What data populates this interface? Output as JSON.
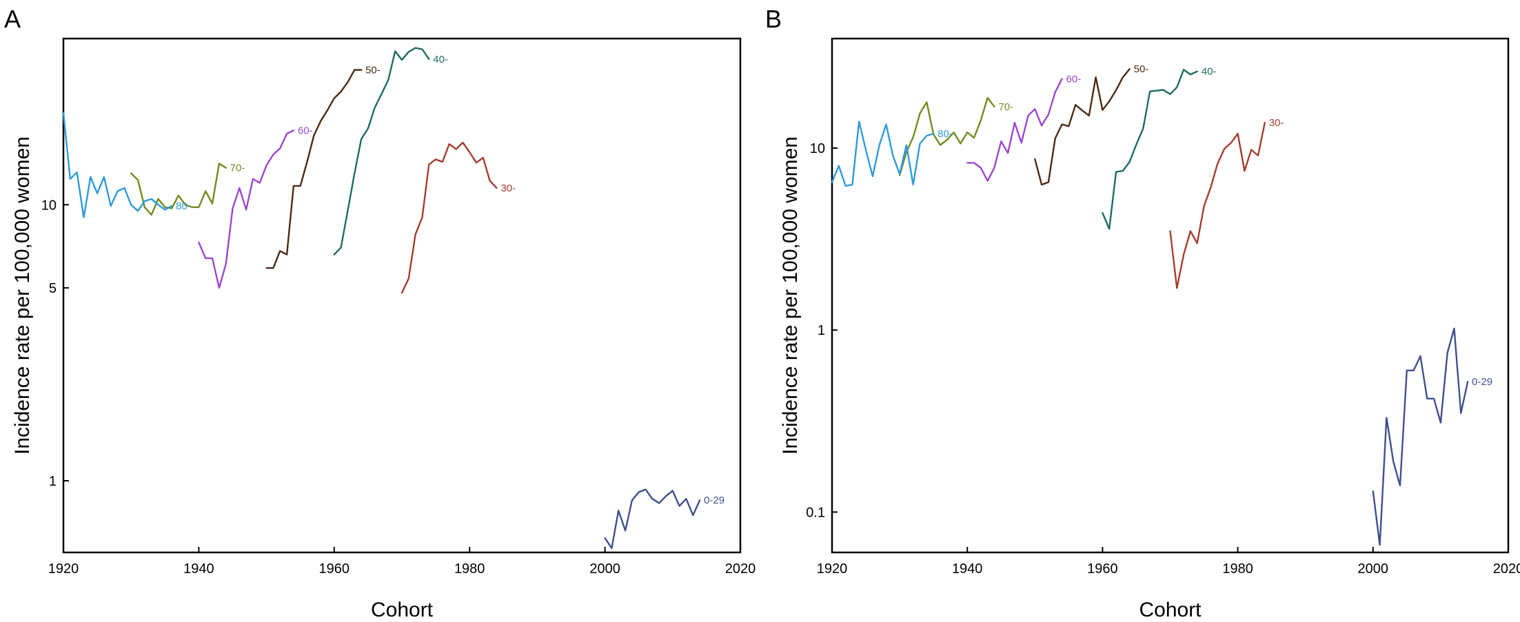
{
  "chart_data": [
    {
      "type": "line",
      "panel": "A",
      "xlabel": "Cohort",
      "ylabel": "Incidence rate per 100,000 women",
      "xlim": [
        1920,
        2020
      ],
      "ylim": [
        0.55,
        40
      ],
      "yscale": "log",
      "xticks": [
        1920,
        1940,
        1960,
        1980,
        2000,
        2020
      ],
      "yticks": [
        1,
        5,
        10
      ],
      "grid": false,
      "legend": "none",
      "series": [
        {
          "name": "0-29",
          "color": "#3f4f8c",
          "x": [
            2000,
            2001,
            2002,
            2003,
            2004,
            2005,
            2006,
            2007,
            2008,
            2009,
            2010,
            2011,
            2012,
            2013,
            2014
          ],
          "y": [
            0.62,
            0.57,
            0.78,
            0.66,
            0.85,
            0.91,
            0.93,
            0.86,
            0.83,
            0.88,
            0.92,
            0.81,
            0.86,
            0.75,
            0.85
          ]
        },
        {
          "name": "30-",
          "color": "#a33d2f",
          "x": [
            1970,
            1971,
            1972,
            1973,
            1974,
            1975,
            1976,
            1977,
            1978,
            1979,
            1980,
            1981,
            1982,
            1983,
            1984
          ],
          "y": [
            4.8,
            5.4,
            7.8,
            9.0,
            14.0,
            14.6,
            14.3,
            16.6,
            15.9,
            16.8,
            15.5,
            14.2,
            14.8,
            12.2,
            11.5
          ]
        },
        {
          "name": "40-",
          "color": "#1d6b60",
          "x": [
            1960,
            1961,
            1962,
            1963,
            1964,
            1965,
            1966,
            1967,
            1968,
            1969,
            1970,
            1971,
            1972,
            1973,
            1974
          ],
          "y": [
            6.6,
            7.0,
            9.5,
            13.0,
            17.3,
            18.9,
            22.5,
            25.2,
            28.4,
            36.0,
            33.5,
            35.8,
            37.0,
            36.6,
            33.7
          ]
        },
        {
          "name": "50-",
          "color": "#4b2a12",
          "x": [
            1950,
            1951,
            1952,
            1953,
            1954,
            1955,
            1956,
            1957,
            1958,
            1959,
            1960,
            1961,
            1962,
            1963,
            1964
          ],
          "y": [
            5.9,
            5.9,
            6.8,
            6.6,
            11.7,
            11.7,
            14.3,
            17.8,
            20.1,
            22.0,
            24.3,
            25.7,
            27.8,
            30.8,
            30.8
          ]
        },
        {
          "name": "60-",
          "color": "#9b46d1",
          "x": [
            1940,
            1941,
            1942,
            1943,
            1944,
            1945,
            1946,
            1947,
            1948,
            1949,
            1950,
            1951,
            1952,
            1953,
            1954
          ],
          "y": [
            7.3,
            6.4,
            6.4,
            5.0,
            6.1,
            9.7,
            11.5,
            9.6,
            12.4,
            12.0,
            13.9,
            15.2,
            16.0,
            18.1,
            18.6
          ]
        },
        {
          "name": "70-",
          "color": "#6f8c1d",
          "x": [
            1930,
            1931,
            1932,
            1933,
            1934,
            1935,
            1936,
            1937,
            1938,
            1939,
            1940,
            1941,
            1942,
            1943,
            1944
          ],
          "y": [
            13.0,
            12.3,
            9.8,
            9.2,
            10.5,
            9.8,
            9.7,
            10.8,
            10.0,
            9.8,
            9.8,
            11.2,
            10.1,
            14.1,
            13.6
          ]
        },
        {
          "name": "80-",
          "color": "#2e9ad9",
          "x": [
            1920,
            1921,
            1922,
            1923,
            1924,
            1925,
            1926,
            1927,
            1928,
            1929,
            1930,
            1931,
            1932,
            1933,
            1934,
            1935,
            1936
          ],
          "y": [
            21.5,
            12.4,
            13.1,
            9.0,
            12.6,
            11.0,
            12.6,
            9.9,
            11.2,
            11.5,
            10.0,
            9.5,
            10.3,
            10.5,
            10.0,
            9.6,
            9.9
          ]
        }
      ]
    },
    {
      "type": "line",
      "panel": "B",
      "xlabel": "Cohort",
      "ylabel": "Incidence rate per 100,000 women",
      "xlim": [
        1920,
        2020
      ],
      "ylim": [
        0.06,
        40
      ],
      "yscale": "log",
      "xticks": [
        1920,
        1940,
        1960,
        1980,
        2000,
        2020
      ],
      "yticks": [
        0.1,
        1,
        10
      ],
      "grid": false,
      "legend": "none",
      "series": [
        {
          "name": "0-29",
          "color": "#3f4f8c",
          "x": [
            2000,
            2001,
            2002,
            2003,
            2004,
            2005,
            2006,
            2007,
            2008,
            2009,
            2010,
            2011,
            2012,
            2013,
            2014
          ],
          "y": [
            0.13,
            0.066,
            0.33,
            0.19,
            0.14,
            0.6,
            0.6,
            0.72,
            0.42,
            0.42,
            0.31,
            0.75,
            1.02,
            0.35,
            0.52
          ]
        },
        {
          "name": "30-",
          "color": "#a33d2f",
          "x": [
            1970,
            1971,
            1972,
            1973,
            1974,
            1975,
            1976,
            1977,
            1978,
            1979,
            1980,
            1981,
            1982,
            1983,
            1984
          ],
          "y": [
            3.5,
            1.7,
            2.6,
            3.5,
            3.0,
            4.8,
            6.1,
            8.2,
            9.9,
            10.7,
            12.0,
            7.5,
            9.8,
            9.1,
            13.8
          ]
        },
        {
          "name": "40-",
          "color": "#1d6b60",
          "x": [
            1960,
            1961,
            1962,
            1963,
            1964,
            1965,
            1966,
            1967,
            1968,
            1969,
            1970,
            1971,
            1972,
            1973,
            1974
          ],
          "y": [
            4.4,
            3.6,
            7.4,
            7.5,
            8.4,
            10.5,
            12.8,
            20.5,
            20.7,
            20.9,
            19.8,
            21.6,
            27.0,
            25.4,
            26.4
          ]
        },
        {
          "name": "50-",
          "color": "#4b2a12",
          "x": [
            1950,
            1951,
            1952,
            1953,
            1954,
            1955,
            1956,
            1957,
            1958,
            1959,
            1960,
            1961,
            1962,
            1963,
            1964
          ],
          "y": [
            8.7,
            6.3,
            6.5,
            11.3,
            13.5,
            13.2,
            17.3,
            16.1,
            15.1,
            24.5,
            16.2,
            18.1,
            20.8,
            24.5,
            27.2
          ]
        },
        {
          "name": "60-",
          "color": "#9b46d1",
          "x": [
            1940,
            1941,
            1942,
            1943,
            1944,
            1945,
            1946,
            1947,
            1948,
            1949,
            1950,
            1951,
            1952,
            1953,
            1954
          ],
          "y": [
            8.3,
            8.3,
            7.8,
            6.6,
            7.8,
            10.9,
            9.4,
            13.8,
            10.7,
            15.1,
            16.4,
            13.3,
            15.3,
            20.3,
            24.0
          ]
        },
        {
          "name": "70-",
          "color": "#6f8c1d",
          "x": [
            1930,
            1931,
            1932,
            1933,
            1934,
            1935,
            1936,
            1937,
            1938,
            1939,
            1940,
            1941,
            1942,
            1943,
            1944
          ],
          "y": [
            7.1,
            9.5,
            11.5,
            15.5,
            17.9,
            11.9,
            10.4,
            11.1,
            12.2,
            10.6,
            12.2,
            11.4,
            14.2,
            18.9,
            16.9
          ]
        },
        {
          "name": "80-",
          "color": "#2e9ad9",
          "x": [
            1920,
            1921,
            1922,
            1923,
            1924,
            1925,
            1926,
            1927,
            1928,
            1929,
            1930,
            1931,
            1932,
            1933,
            1934,
            1935
          ],
          "y": [
            6.5,
            8.0,
            6.2,
            6.3,
            14.0,
            9.8,
            7.0,
            10.4,
            13.5,
            9.1,
            7.2,
            10.4,
            6.3,
            10.6,
            11.7,
            12.0
          ]
        }
      ]
    }
  ]
}
